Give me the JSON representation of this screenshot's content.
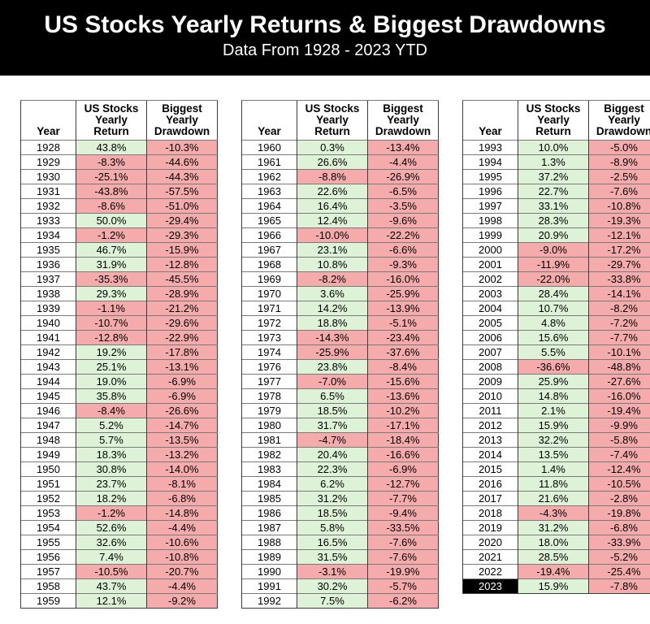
{
  "header": {
    "title": "US Stocks Yearly Returns & Biggest Drawdowns",
    "subtitle": "Data From 1928 - 2023 YTD"
  },
  "colors": {
    "page_bg": "#ffffff",
    "banner_bg": "#000000",
    "banner_fg": "#ffffff",
    "cell_fg": "#000000",
    "positive_bg": "#ddf2d6",
    "negative_bg": "#f5abab",
    "highlight_bg": "#000000",
    "highlight_fg": "#ffffff"
  },
  "chart_data": {
    "type": "table",
    "title": "US Stocks Yearly Returns & Biggest Drawdowns",
    "subtitle": "Data From 1928 - 2023 YTD",
    "columns": [
      "Year",
      "US Stocks\nYearly\nReturn",
      "Biggest\nYearly\nDrawdown"
    ],
    "highlight_year": "2023",
    "tables": [
      {
        "rows": [
          [
            "1928",
            "43.8%",
            "-10.3%"
          ],
          [
            "1929",
            "-8.3%",
            "-44.6%"
          ],
          [
            "1930",
            "-25.1%",
            "-44.3%"
          ],
          [
            "1931",
            "-43.8%",
            "-57.5%"
          ],
          [
            "1932",
            "-8.6%",
            "-51.0%"
          ],
          [
            "1933",
            "50.0%",
            "-29.4%"
          ],
          [
            "1934",
            "-1.2%",
            "-29.3%"
          ],
          [
            "1935",
            "46.7%",
            "-15.9%"
          ],
          [
            "1936",
            "31.9%",
            "-12.8%"
          ],
          [
            "1937",
            "-35.3%",
            "-45.5%"
          ],
          [
            "1938",
            "29.3%",
            "-28.9%"
          ],
          [
            "1939",
            "-1.1%",
            "-21.2%"
          ],
          [
            "1940",
            "-10.7%",
            "-29.6%"
          ],
          [
            "1941",
            "-12.8%",
            "-22.9%"
          ],
          [
            "1942",
            "19.2%",
            "-17.8%"
          ],
          [
            "1943",
            "25.1%",
            "-13.1%"
          ],
          [
            "1944",
            "19.0%",
            "-6.9%"
          ],
          [
            "1945",
            "35.8%",
            "-6.9%"
          ],
          [
            "1946",
            "-8.4%",
            "-26.6%"
          ],
          [
            "1947",
            "5.2%",
            "-14.7%"
          ],
          [
            "1948",
            "5.7%",
            "-13.5%"
          ],
          [
            "1949",
            "18.3%",
            "-13.2%"
          ],
          [
            "1950",
            "30.8%",
            "-14.0%"
          ],
          [
            "1951",
            "23.7%",
            "-8.1%"
          ],
          [
            "1952",
            "18.2%",
            "-6.8%"
          ],
          [
            "1953",
            "-1.2%",
            "-14.8%"
          ],
          [
            "1954",
            "52.6%",
            "-4.4%"
          ],
          [
            "1955",
            "32.6%",
            "-10.6%"
          ],
          [
            "1956",
            "7.4%",
            "-10.8%"
          ],
          [
            "1957",
            "-10.5%",
            "-20.7%"
          ],
          [
            "1958",
            "43.7%",
            "-4.4%"
          ],
          [
            "1959",
            "12.1%",
            "-9.2%"
          ]
        ]
      },
      {
        "rows": [
          [
            "1960",
            "0.3%",
            "-13.4%"
          ],
          [
            "1961",
            "26.6%",
            "-4.4%"
          ],
          [
            "1962",
            "-8.8%",
            "-26.9%"
          ],
          [
            "1963",
            "22.6%",
            "-6.5%"
          ],
          [
            "1964",
            "16.4%",
            "-3.5%"
          ],
          [
            "1965",
            "12.4%",
            "-9.6%"
          ],
          [
            "1966",
            "-10.0%",
            "-22.2%"
          ],
          [
            "1967",
            "23.1%",
            "-6.6%"
          ],
          [
            "1968",
            "10.8%",
            "-9.3%"
          ],
          [
            "1969",
            "-8.2%",
            "-16.0%"
          ],
          [
            "1970",
            "3.6%",
            "-25.9%"
          ],
          [
            "1971",
            "14.2%",
            "-13.9%"
          ],
          [
            "1972",
            "18.8%",
            "-5.1%"
          ],
          [
            "1973",
            "-14.3%",
            "-23.4%"
          ],
          [
            "1974",
            "-25.9%",
            "-37.6%"
          ],
          [
            "1976",
            "23.8%",
            "-8.4%"
          ],
          [
            "1977",
            "-7.0%",
            "-15.6%"
          ],
          [
            "1978",
            "6.5%",
            "-13.6%"
          ],
          [
            "1979",
            "18.5%",
            "-10.2%"
          ],
          [
            "1980",
            "31.7%",
            "-17.1%"
          ],
          [
            "1981",
            "-4.7%",
            "-18.4%"
          ],
          [
            "1982",
            "20.4%",
            "-16.6%"
          ],
          [
            "1983",
            "22.3%",
            "-6.9%"
          ],
          [
            "1984",
            "6.2%",
            "-12.7%"
          ],
          [
            "1985",
            "31.2%",
            "-7.7%"
          ],
          [
            "1986",
            "18.5%",
            "-9.4%"
          ],
          [
            "1987",
            "5.8%",
            "-33.5%"
          ],
          [
            "1988",
            "16.5%",
            "-7.6%"
          ],
          [
            "1989",
            "31.5%",
            "-7.6%"
          ],
          [
            "1990",
            "-3.1%",
            "-19.9%"
          ],
          [
            "1991",
            "30.2%",
            "-5.7%"
          ],
          [
            "1992",
            "7.5%",
            "-6.2%"
          ]
        ]
      },
      {
        "rows": [
          [
            "1993",
            "10.0%",
            "-5.0%"
          ],
          [
            "1994",
            "1.3%",
            "-8.9%"
          ],
          [
            "1995",
            "37.2%",
            "-2.5%"
          ],
          [
            "1996",
            "22.7%",
            "-7.6%"
          ],
          [
            "1997",
            "33.1%",
            "-10.8%"
          ],
          [
            "1998",
            "28.3%",
            "-19.3%"
          ],
          [
            "1999",
            "20.9%",
            "-12.1%"
          ],
          [
            "2000",
            "-9.0%",
            "-17.2%"
          ],
          [
            "2001",
            "-11.9%",
            "-29.7%"
          ],
          [
            "2002",
            "-22.0%",
            "-33.8%"
          ],
          [
            "2003",
            "28.4%",
            "-14.1%"
          ],
          [
            "2004",
            "10.7%",
            "-8.2%"
          ],
          [
            "2005",
            "4.8%",
            "-7.2%"
          ],
          [
            "2006",
            "15.6%",
            "-7.7%"
          ],
          [
            "2007",
            "5.5%",
            "-10.1%"
          ],
          [
            "2008",
            "-36.6%",
            "-48.8%"
          ],
          [
            "2009",
            "25.9%",
            "-27.6%"
          ],
          [
            "2010",
            "14.8%",
            "-16.0%"
          ],
          [
            "2011",
            "2.1%",
            "-19.4%"
          ],
          [
            "2012",
            "15.9%",
            "-9.9%"
          ],
          [
            "2013",
            "32.2%",
            "-5.8%"
          ],
          [
            "2014",
            "13.5%",
            "-7.4%"
          ],
          [
            "2015",
            "1.4%",
            "-12.4%"
          ],
          [
            "2016",
            "11.8%",
            "-10.5%"
          ],
          [
            "2017",
            "21.6%",
            "-2.8%"
          ],
          [
            "2018",
            "-4.3%",
            "-19.8%"
          ],
          [
            "2019",
            "31.2%",
            "-6.8%"
          ],
          [
            "2020",
            "18.0%",
            "-33.9%"
          ],
          [
            "2021",
            "28.5%",
            "-5.2%"
          ],
          [
            "2022",
            "-19.4%",
            "-25.4%"
          ],
          [
            "2023",
            "15.9%",
            "-7.8%"
          ]
        ]
      }
    ]
  }
}
